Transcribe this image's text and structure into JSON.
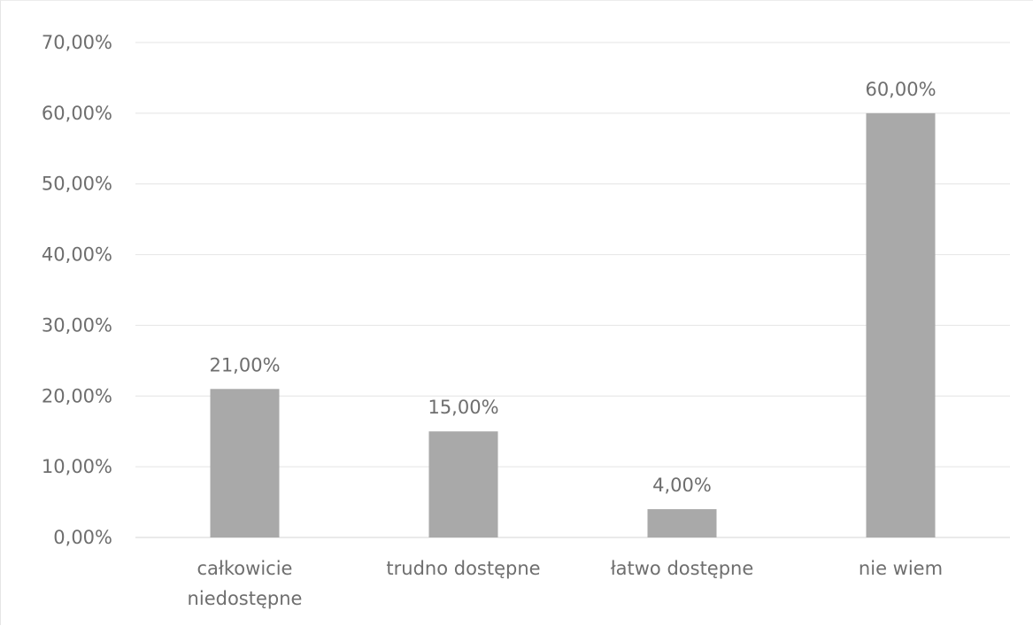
{
  "chart_data": {
    "type": "bar",
    "title": "",
    "xlabel": "",
    "ylabel": "",
    "categories": [
      [
        "całkowicie",
        "niedostępne"
      ],
      [
        "trudno dostępne"
      ],
      [
        "łatwo dostępne"
      ],
      [
        "nie wiem"
      ]
    ],
    "values": [
      21,
      15,
      4,
      60
    ],
    "data_labels": [
      "21,00%",
      "15,00%",
      "4,00%",
      "60,00%"
    ],
    "ylim": [
      0,
      70
    ],
    "y_ticks": [
      0,
      10,
      20,
      30,
      40,
      50,
      60,
      70
    ],
    "y_tick_labels": [
      "0,00%",
      "10,00%",
      "20,00%",
      "30,00%",
      "40,00%",
      "50,00%",
      "60,00%",
      "70,00%"
    ],
    "grid": true,
    "legend": "none",
    "colors": {
      "bar": "#a9a9a9",
      "gridline": "#e4e4e4",
      "text": "#6e6e6e",
      "highlight_tick": "#9ec4e6"
    }
  }
}
